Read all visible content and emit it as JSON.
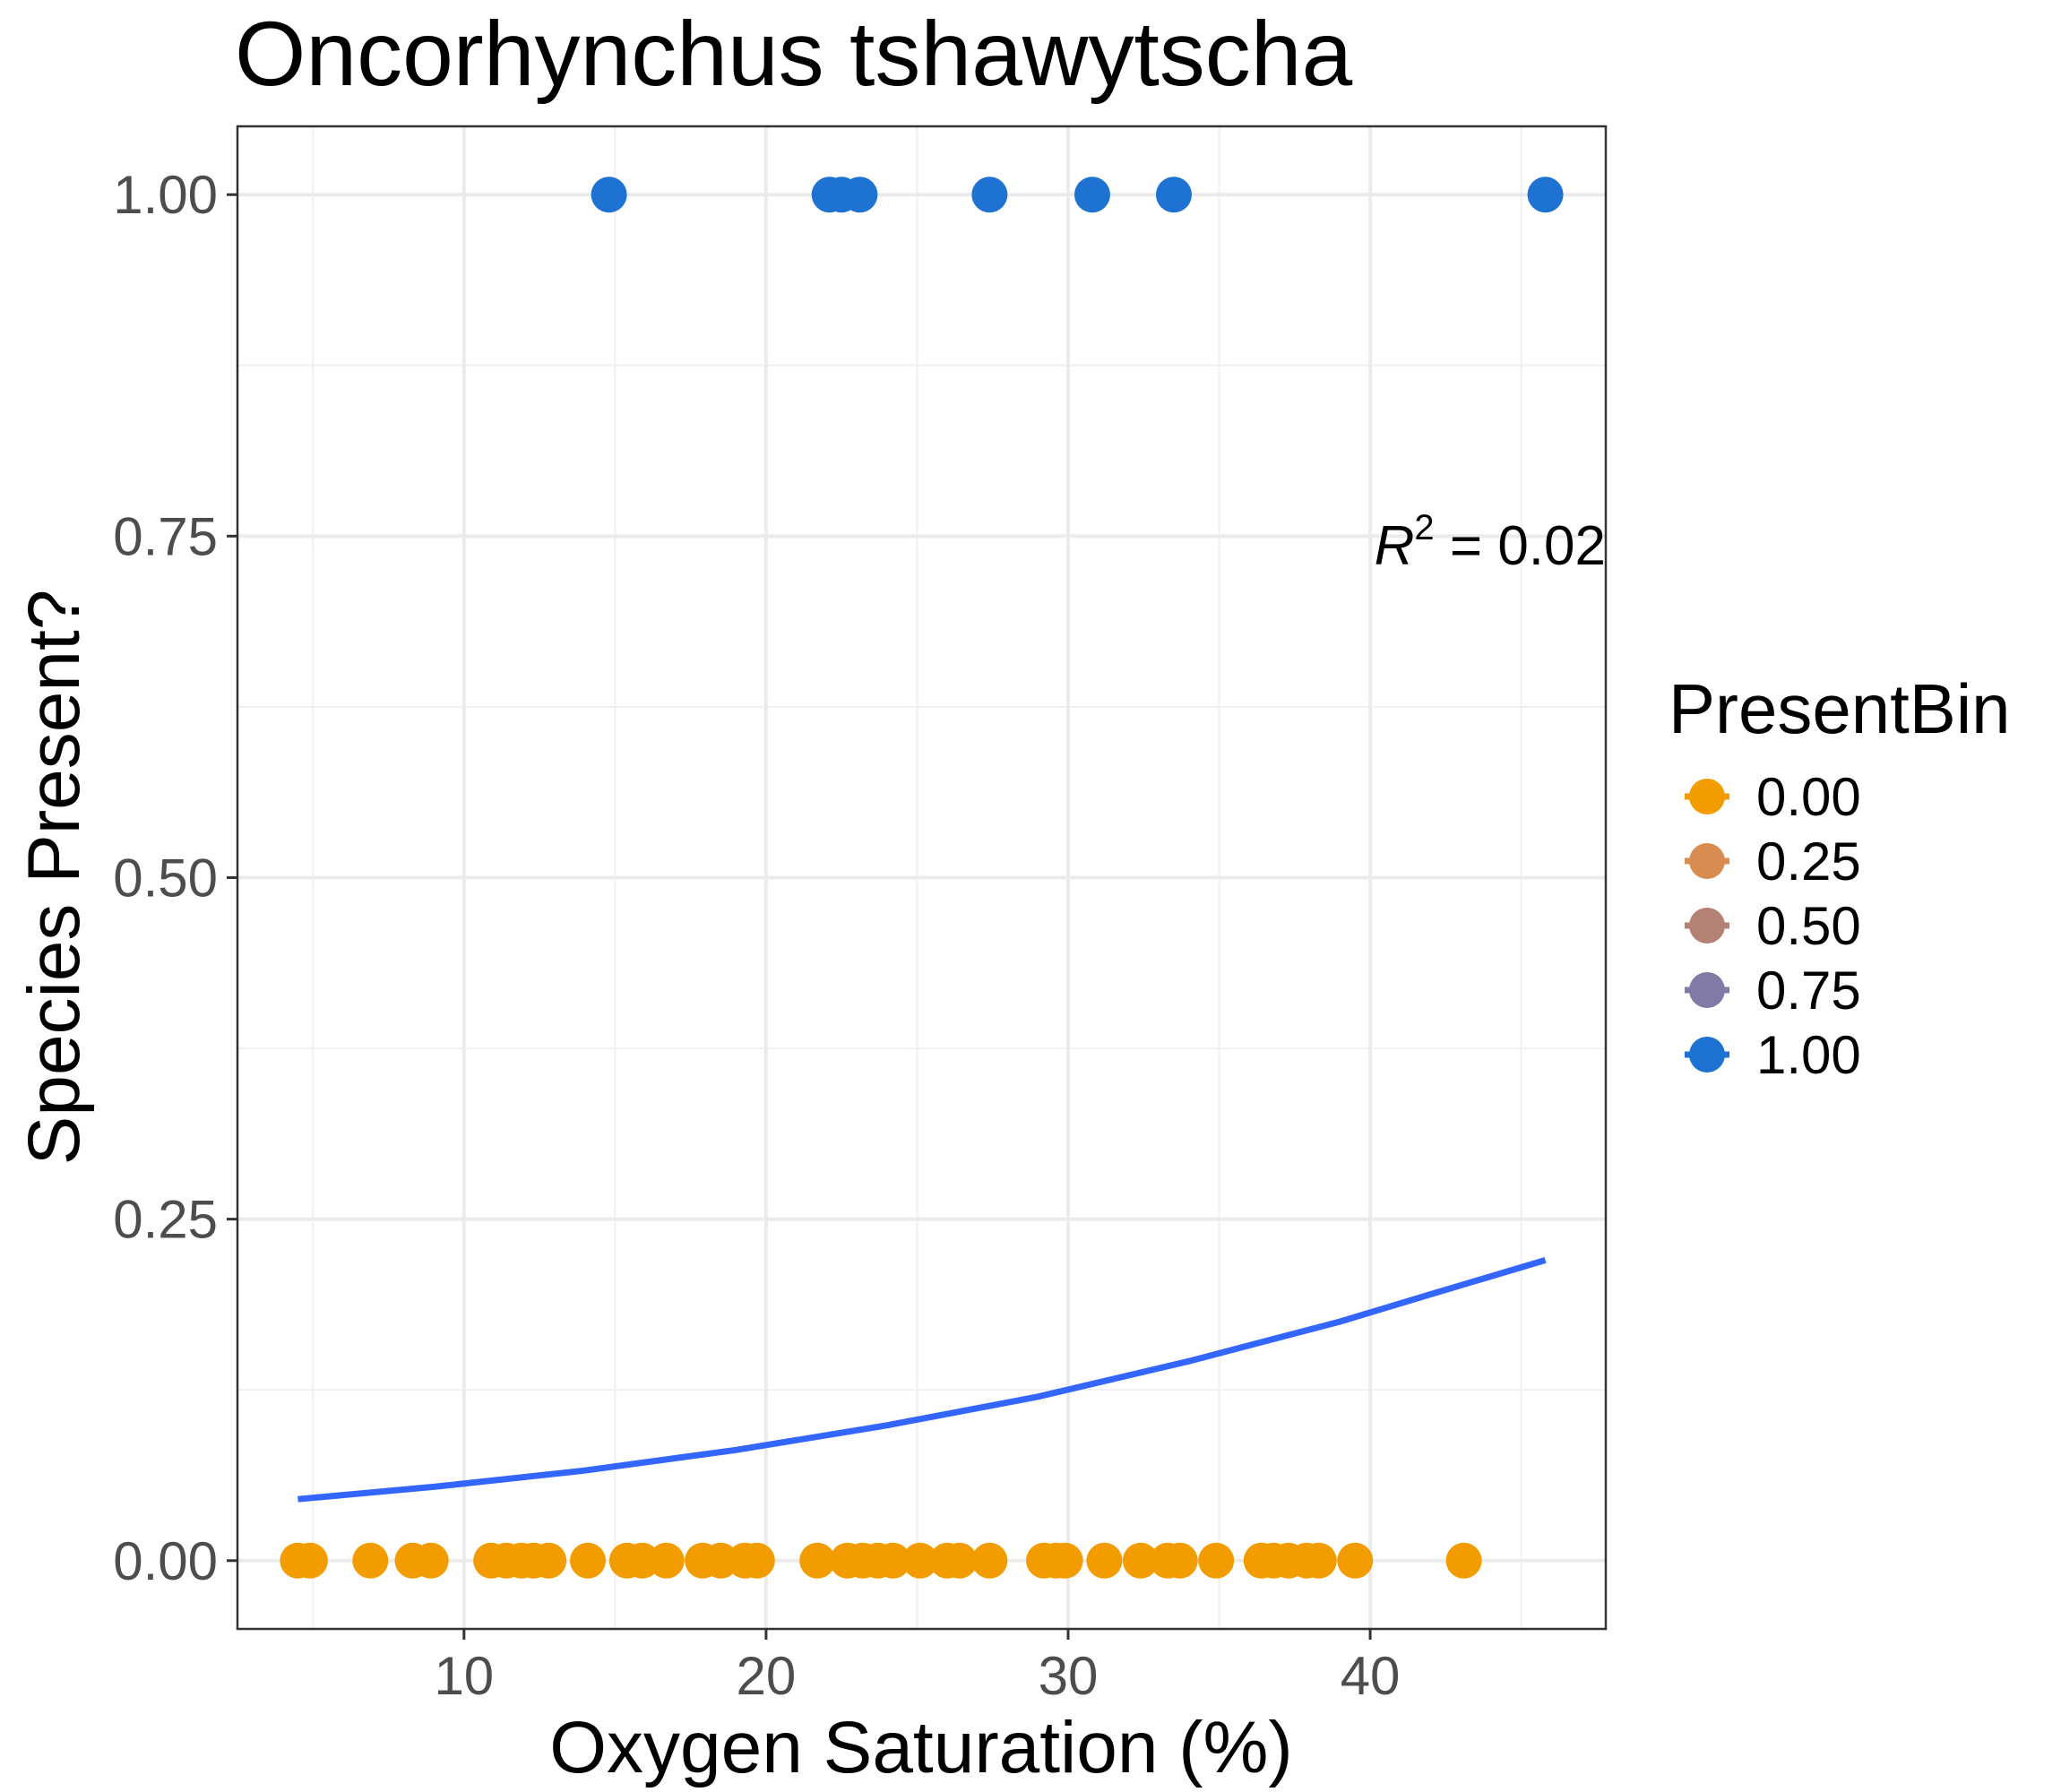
{
  "chart_data": {
    "type": "scatter",
    "title": "Oncorhynchus tshawytscha",
    "xlabel": "Oxygen Saturation (%)",
    "ylabel": "Species Present?",
    "xlim": [
      2.5,
      47.8
    ],
    "ylim": [
      -0.05,
      1.05
    ],
    "x_ticks": [
      10,
      20,
      30,
      40
    ],
    "x_tick_labels": [
      "10",
      "20",
      "30",
      "40"
    ],
    "y_ticks": [
      0,
      0.25,
      0.5,
      0.75,
      1
    ],
    "y_tick_labels": [
      "0.00",
      "0.25",
      "0.50",
      "0.75",
      "1.00"
    ],
    "grid": true,
    "legend": {
      "title": "PresentBin",
      "position": "right",
      "entries": [
        {
          "label": "0.00",
          "color": "#f39c00"
        },
        {
          "label": "0.25",
          "color": "#d88c4f"
        },
        {
          "label": "0.50",
          "color": "#b48274"
        },
        {
          "label": "0.75",
          "color": "#8179a6"
        },
        {
          "label": "1.00",
          "color": "#1e73d2"
        }
      ]
    },
    "annotation": {
      "prefix": "R",
      "superscript": "2",
      "text": " = 0.02"
    },
    "series": [
      {
        "name": "1.00",
        "color": "#1e73d2",
        "points": [
          {
            "x": 14.8,
            "y": 1
          },
          {
            "x": 22.1,
            "y": 1
          },
          {
            "x": 22.5,
            "y": 1
          },
          {
            "x": 23.1,
            "y": 1
          },
          {
            "x": 27.4,
            "y": 1
          },
          {
            "x": 30.8,
            "y": 1
          },
          {
            "x": 33.5,
            "y": 1
          },
          {
            "x": 45.8,
            "y": 1
          }
        ]
      },
      {
        "name": "0.00",
        "color": "#f39c00",
        "points": [
          {
            "x": 4.5,
            "y": 0
          },
          {
            "x": 4.9,
            "y": 0
          },
          {
            "x": 6.9,
            "y": 0
          },
          {
            "x": 8.3,
            "y": 0
          },
          {
            "x": 8.9,
            "y": 0
          },
          {
            "x": 10.9,
            "y": 0
          },
          {
            "x": 11.4,
            "y": 0
          },
          {
            "x": 11.9,
            "y": 0
          },
          {
            "x": 12.3,
            "y": 0
          },
          {
            "x": 12.8,
            "y": 0
          },
          {
            "x": 14.1,
            "y": 0
          },
          {
            "x": 15.4,
            "y": 0
          },
          {
            "x": 15.9,
            "y": 0
          },
          {
            "x": 16.7,
            "y": 0
          },
          {
            "x": 17.9,
            "y": 0
          },
          {
            "x": 18.5,
            "y": 0
          },
          {
            "x": 19.3,
            "y": 0
          },
          {
            "x": 19.7,
            "y": 0
          },
          {
            "x": 21.7,
            "y": 0
          },
          {
            "x": 22.7,
            "y": 0
          },
          {
            "x": 23.2,
            "y": 0
          },
          {
            "x": 23.7,
            "y": 0
          },
          {
            "x": 24.2,
            "y": 0
          },
          {
            "x": 25.1,
            "y": 0
          },
          {
            "x": 26.0,
            "y": 0
          },
          {
            "x": 26.4,
            "y": 0
          },
          {
            "x": 27.4,
            "y": 0
          },
          {
            "x": 29.2,
            "y": 0
          },
          {
            "x": 29.6,
            "y": 0
          },
          {
            "x": 29.9,
            "y": 0
          },
          {
            "x": 31.2,
            "y": 0
          },
          {
            "x": 32.4,
            "y": 0
          },
          {
            "x": 33.3,
            "y": 0
          },
          {
            "x": 33.7,
            "y": 0
          },
          {
            "x": 34.9,
            "y": 0
          },
          {
            "x": 36.4,
            "y": 0
          },
          {
            "x": 36.8,
            "y": 0
          },
          {
            "x": 37.3,
            "y": 0
          },
          {
            "x": 37.9,
            "y": 0
          },
          {
            "x": 38.3,
            "y": 0
          },
          {
            "x": 39.5,
            "y": 0
          },
          {
            "x": 43.1,
            "y": 0
          }
        ]
      }
    ],
    "fit_line": {
      "color": "#3366ff",
      "points": [
        {
          "x": 4.5,
          "y": 0.045
        },
        {
          "x": 9,
          "y": 0.054
        },
        {
          "x": 14,
          "y": 0.066
        },
        {
          "x": 19,
          "y": 0.081
        },
        {
          "x": 24,
          "y": 0.099
        },
        {
          "x": 29,
          "y": 0.12
        },
        {
          "x": 34,
          "y": 0.146
        },
        {
          "x": 39,
          "y": 0.175
        },
        {
          "x": 42,
          "y": 0.195
        },
        {
          "x": 45.8,
          "y": 0.22
        }
      ]
    }
  }
}
